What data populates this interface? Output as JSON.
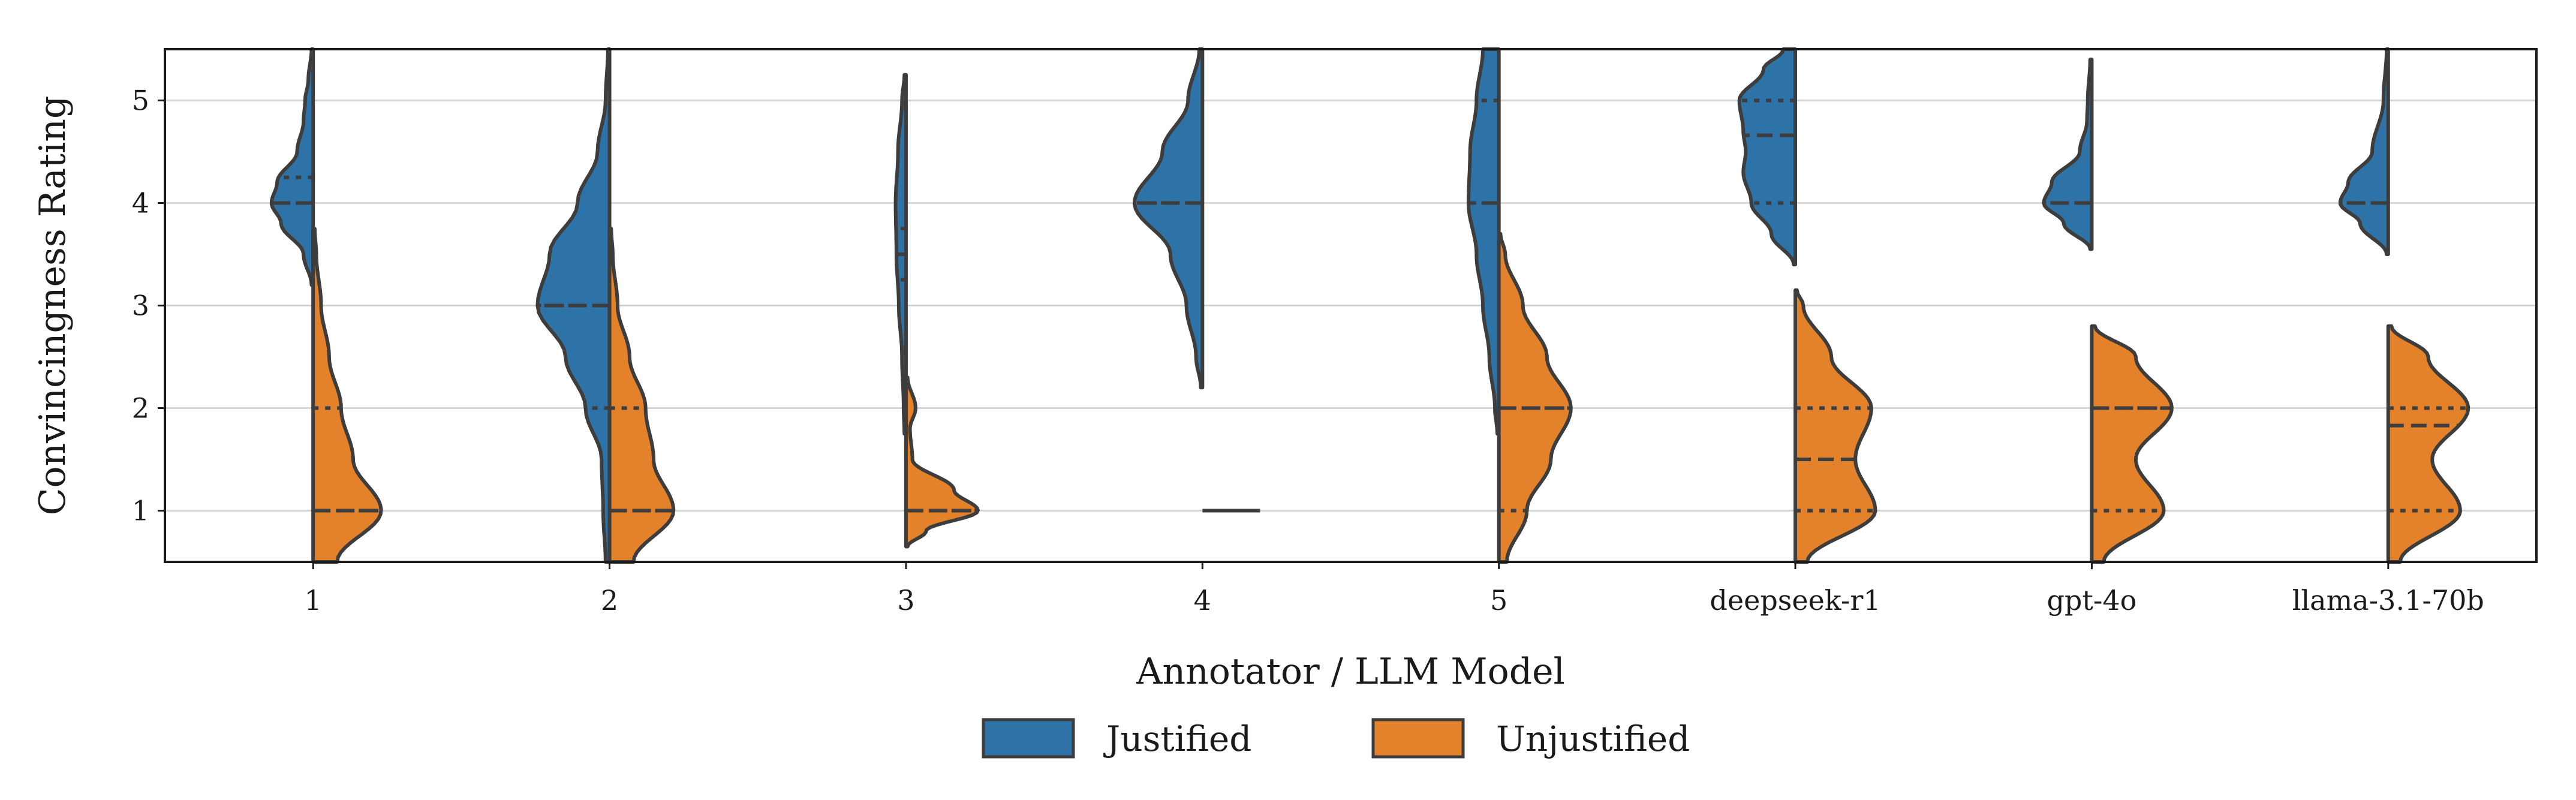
{
  "chart_data": {
    "type": "violin",
    "split": true,
    "title": "",
    "xlabel": "Annotator / LLM Model",
    "ylabel": "Convincingness Rating",
    "ylim": [
      0.5,
      5.5
    ],
    "yticks": [
      1,
      2,
      3,
      4,
      5
    ],
    "grid": "horizontal",
    "legend_position": "bottom-center",
    "categories": [
      "1",
      "2",
      "3",
      "4",
      "5",
      "deepseek-r1",
      "gpt-4o",
      "llama-3.1-70b"
    ],
    "series": [
      {
        "name": "Justified",
        "side": "left",
        "color": "#2e73a8",
        "violins": [
          {
            "range": [
              3.2,
              5.5
            ],
            "profile": [
              [
                3.2,
                0.02
              ],
              [
                3.5,
                0.12
              ],
              [
                3.8,
                0.4
              ],
              [
                4.0,
                0.52
              ],
              [
                4.2,
                0.45
              ],
              [
                4.5,
                0.2
              ],
              [
                4.8,
                0.12
              ],
              [
                5.0,
                0.1
              ],
              [
                5.2,
                0.06
              ],
              [
                5.5,
                0.02
              ]
            ],
            "quartiles": [
              4,
              4,
              4.25
            ]
          },
          {
            "range": [
              0.5,
              5.5
            ],
            "profile": [
              [
                0.5,
                0.05
              ],
              [
                1.0,
                0.08
              ],
              [
                1.5,
                0.1
              ],
              [
                2.0,
                0.3
              ],
              [
                2.5,
                0.55
              ],
              [
                3.0,
                0.9
              ],
              [
                3.5,
                0.75
              ],
              [
                4.0,
                0.4
              ],
              [
                4.5,
                0.15
              ],
              [
                5.0,
                0.05
              ],
              [
                5.5,
                0.02
              ]
            ],
            "quartiles": [
              2,
              3,
              3
            ]
          },
          {
            "range": [
              1.75,
              5.25
            ],
            "profile": [
              [
                1.75,
                0.02
              ],
              [
                2.0,
                0.03
              ],
              [
                2.5,
                0.05
              ],
              [
                3.0,
                0.09
              ],
              [
                3.5,
                0.12
              ],
              [
                4.0,
                0.13
              ],
              [
                4.5,
                0.1
              ],
              [
                5.0,
                0.05
              ],
              [
                5.25,
                0.02
              ]
            ],
            "quartiles": [
              3.25,
              3.5,
              3.75
            ]
          },
          {
            "range": [
              2.2,
              5.5
            ],
            "profile": [
              [
                2.2,
                0.02
              ],
              [
                2.5,
                0.08
              ],
              [
                3.0,
                0.2
              ],
              [
                3.5,
                0.4
              ],
              [
                4.0,
                0.85
              ],
              [
                4.5,
                0.5
              ],
              [
                5.0,
                0.18
              ],
              [
                5.5,
                0.04
              ]
            ],
            "quartiles": [
              4,
              4,
              4
            ]
          },
          {
            "range": [
              1.75,
              5.5
            ],
            "profile": [
              [
                1.75,
                0.02
              ],
              [
                2.0,
                0.05
              ],
              [
                2.5,
                0.12
              ],
              [
                3.0,
                0.2
              ],
              [
                3.5,
                0.28
              ],
              [
                4.0,
                0.38
              ],
              [
                4.5,
                0.36
              ],
              [
                5.0,
                0.28
              ],
              [
                5.5,
                0.2
              ]
            ],
            "quartiles": [
              4,
              4,
              5
            ]
          },
          {
            "range": [
              3.4,
              5.5
            ],
            "profile": [
              [
                3.4,
                0.02
              ],
              [
                3.7,
                0.3
              ],
              [
                4.0,
                0.55
              ],
              [
                4.3,
                0.65
              ],
              [
                4.5,
                0.62
              ],
              [
                4.7,
                0.65
              ],
              [
                5.0,
                0.7
              ],
              [
                5.3,
                0.4
              ],
              [
                5.5,
                0.15
              ]
            ],
            "quartiles": [
              4,
              4.66,
              5
            ]
          },
          {
            "range": [
              3.55,
              5.4
            ],
            "profile": [
              [
                3.55,
                0.02
              ],
              [
                3.8,
                0.35
              ],
              [
                4.0,
                0.6
              ],
              [
                4.2,
                0.5
              ],
              [
                4.5,
                0.15
              ],
              [
                4.8,
                0.06
              ],
              [
                5.0,
                0.05
              ],
              [
                5.4,
                0.02
              ]
            ],
            "quartiles": [
              4,
              4,
              4
            ]
          },
          {
            "range": [
              3.5,
              5.5
            ],
            "profile": [
              [
                3.5,
                0.02
              ],
              [
                3.8,
                0.35
              ],
              [
                4.0,
                0.6
              ],
              [
                4.2,
                0.5
              ],
              [
                4.5,
                0.2
              ],
              [
                5.0,
                0.06
              ],
              [
                5.5,
                0.02
              ]
            ],
            "quartiles": [
              4,
              4,
              4
            ]
          }
        ]
      },
      {
        "name": "Unjustified",
        "side": "right",
        "color": "#e3822b",
        "violins": [
          {
            "range": [
              0.5,
              3.75
            ],
            "profile": [
              [
                0.5,
                0.3
              ],
              [
                1.0,
                0.85
              ],
              [
                1.5,
                0.5
              ],
              [
                2.0,
                0.35
              ],
              [
                2.5,
                0.2
              ],
              [
                3.0,
                0.1
              ],
              [
                3.5,
                0.04
              ],
              [
                3.75,
                0.02
              ]
            ],
            "quartiles": [
              1,
              1,
              2
            ]
          },
          {
            "range": [
              0.5,
              3.75
            ],
            "profile": [
              [
                0.5,
                0.3
              ],
              [
                1.0,
                0.8
              ],
              [
                1.5,
                0.55
              ],
              [
                2.0,
                0.45
              ],
              [
                2.5,
                0.25
              ],
              [
                3.0,
                0.1
              ],
              [
                3.5,
                0.04
              ],
              [
                3.75,
                0.02
              ]
            ],
            "quartiles": [
              1,
              1,
              2
            ]
          },
          {
            "range": [
              0.65,
              2.3
            ],
            "profile": [
              [
                0.65,
                0.02
              ],
              [
                0.8,
                0.25
              ],
              [
                1.0,
                0.9
              ],
              [
                1.2,
                0.6
              ],
              [
                1.5,
                0.08
              ],
              [
                1.8,
                0.05
              ],
              [
                2.0,
                0.12
              ],
              [
                2.3,
                0.02
              ]
            ],
            "quartiles": [
              1,
              1,
              1
            ]
          },
          {
            "range": [
              1,
              1
            ],
            "profile": [],
            "quartiles": [
              1,
              1,
              1
            ],
            "line_only": true
          },
          {
            "range": [
              0.5,
              3.7
            ],
            "profile": [
              [
                0.5,
                0.1
              ],
              [
                1.0,
                0.35
              ],
              [
                1.5,
                0.65
              ],
              [
                2.0,
                0.9
              ],
              [
                2.5,
                0.6
              ],
              [
                3.0,
                0.3
              ],
              [
                3.5,
                0.08
              ],
              [
                3.7,
                0.02
              ]
            ],
            "quartiles": [
              1,
              2,
              2
            ]
          },
          {
            "range": [
              0.5,
              3.15
            ],
            "profile": [
              [
                0.5,
                0.15
              ],
              [
                1.0,
                1.0
              ],
              [
                1.5,
                0.75
              ],
              [
                2.0,
                0.95
              ],
              [
                2.5,
                0.45
              ],
              [
                3.0,
                0.1
              ],
              [
                3.15,
                0.02
              ]
            ],
            "quartiles": [
              1,
              1.5,
              2
            ]
          },
          {
            "range": [
              0.5,
              2.8
            ],
            "profile": [
              [
                0.5,
                0.15
              ],
              [
                1.0,
                0.9
              ],
              [
                1.5,
                0.55
              ],
              [
                2.0,
                1.0
              ],
              [
                2.5,
                0.55
              ],
              [
                2.8,
                0.04
              ]
            ],
            "quartiles": [
              1,
              2,
              2
            ]
          },
          {
            "range": [
              0.5,
              2.8
            ],
            "profile": [
              [
                0.5,
                0.15
              ],
              [
                1.0,
                0.9
              ],
              [
                1.5,
                0.55
              ],
              [
                2.0,
                1.0
              ],
              [
                2.5,
                0.5
              ],
              [
                2.8,
                0.04
              ]
            ],
            "quartiles": [
              1,
              1.83,
              2
            ]
          }
        ]
      }
    ]
  },
  "legend": {
    "items": [
      {
        "label": "Justified",
        "color": "#2e73a8"
      },
      {
        "label": "Unjustified",
        "color": "#e3822b"
      }
    ]
  }
}
